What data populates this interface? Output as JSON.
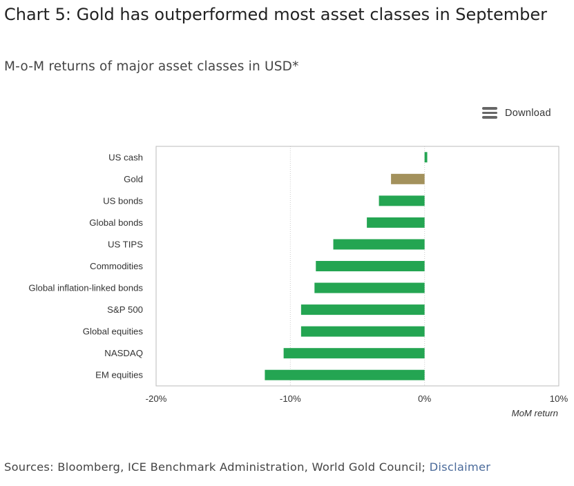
{
  "header": {
    "title": "Chart 5: Gold has outperformed most asset classes in September",
    "subtitle": "M-o-M returns of major asset classes in USD*"
  },
  "toolbar": {
    "download_label": "Download",
    "download_icon": "menu-icon"
  },
  "footer": {
    "sources_text": "Sources: Bloomberg, ICE Benchmark Administration, World Gold Council;",
    "disclaimer_link": "Disclaimer"
  },
  "colors": {
    "bar": "#24a552",
    "gold_bar": "#a3915c",
    "grid": "#cccccc",
    "plot_border": "#bbbbbb",
    "link": "#4a6a9a"
  },
  "chart_data": {
    "type": "bar",
    "orientation": "horizontal",
    "categories": [
      "US cash",
      "Gold",
      "US bonds",
      "Global bonds",
      "US TIPS",
      "Commodities",
      "Global inflation-linked bonds",
      "S&P 500",
      "Global equities",
      "NASDAQ",
      "EM equities"
    ],
    "values": [
      0.2,
      -2.5,
      -3.4,
      -4.3,
      -6.8,
      -8.1,
      -8.2,
      -9.2,
      -9.2,
      -10.5,
      -11.9
    ],
    "highlight_category": "Gold",
    "xlim": [
      -20,
      10
    ],
    "xticks": [
      -20,
      -10,
      0,
      10
    ],
    "xtick_labels": [
      "-20%",
      "-10%",
      "0%",
      "10%"
    ],
    "xlabel": "MoM return",
    "grid": "vertical dotted"
  }
}
